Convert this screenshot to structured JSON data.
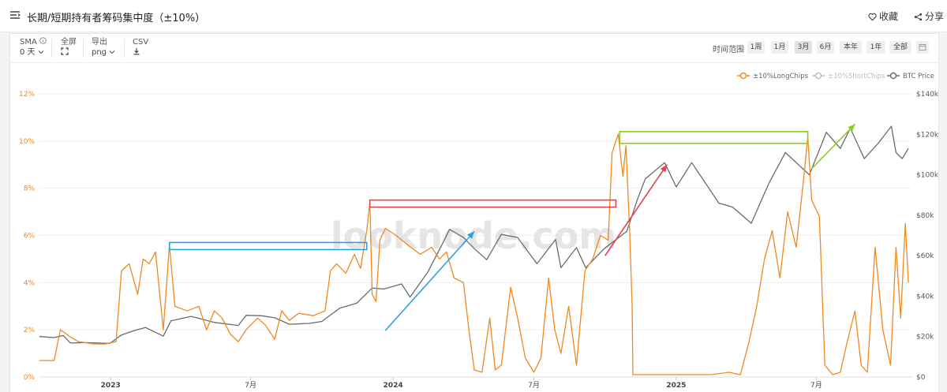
{
  "header": {
    "title": "长期/短期持有者筹码集中度（±10%）",
    "favorite_label": "收藏",
    "share_label": "分享"
  },
  "toolbar": {
    "sma": {
      "label": "SMA",
      "value": "0 天"
    },
    "fullscreen": {
      "label": "全屏"
    },
    "export": {
      "label": "导出",
      "value": "png"
    },
    "csv": {
      "label": "CSV"
    },
    "range_label": "时间范围",
    "ranges": [
      "1周",
      "1月",
      "3月",
      "6月",
      "本年",
      "1年",
      "全部"
    ],
    "active_range": "3月"
  },
  "colors": {
    "long_chips": "#f0891e",
    "short_chips": "#bdbdbd",
    "btc_price": "#6b6b6b",
    "annot_blue": "#29a3e0",
    "annot_red": "#e0444f",
    "annot_green": "#8ccc1e"
  },
  "watermark": "looknode.com",
  "chart_data": {
    "type": "line",
    "x_ticks": [
      "2023",
      "7月",
      "2024",
      "7月",
      "2025",
      "7月"
    ],
    "left_axis": {
      "ticks": [
        "0%",
        "2%",
        "4%",
        "6%",
        "8%",
        "10%",
        "12%"
      ],
      "ylim": [
        0,
        12
      ]
    },
    "right_axis": {
      "ticks": [
        "$0",
        "$20k",
        "$40k",
        "$60k",
        "$80k",
        "$100k",
        "$120k",
        "$140k"
      ],
      "ylim": [
        0,
        140000
      ]
    },
    "legend": {
      "position": "top-right"
    },
    "series": [
      {
        "name": "±10%LongChips",
        "axis": "left",
        "unit": "%",
        "points": [
          [
            "2022-10-01",
            0.7
          ],
          [
            "2022-10-20",
            0.7
          ],
          [
            "2022-10-28",
            2.0
          ],
          [
            "2022-11-10",
            1.7
          ],
          [
            "2022-11-20",
            1.5
          ],
          [
            "2022-12-10",
            1.4
          ],
          [
            "2022-12-25",
            1.4
          ],
          [
            "2023-01-08",
            1.5
          ],
          [
            "2023-01-15",
            4.5
          ],
          [
            "2023-01-25",
            4.8
          ],
          [
            "2023-02-05",
            3.5
          ],
          [
            "2023-02-12",
            5.0
          ],
          [
            "2023-02-20",
            4.8
          ],
          [
            "2023-02-28",
            5.3
          ],
          [
            "2023-03-10",
            2.0
          ],
          [
            "2023-03-18",
            5.6
          ],
          [
            "2023-03-25",
            3.0
          ],
          [
            "2023-04-10",
            2.8
          ],
          [
            "2023-04-25",
            3.0
          ],
          [
            "2023-05-05",
            2.0
          ],
          [
            "2023-05-15",
            2.8
          ],
          [
            "2023-05-25",
            2.5
          ],
          [
            "2023-06-05",
            1.8
          ],
          [
            "2023-06-15",
            1.5
          ],
          [
            "2023-06-25",
            2.0
          ],
          [
            "2023-07-10",
            2.5
          ],
          [
            "2023-07-20",
            2.2
          ],
          [
            "2023-08-01",
            1.6
          ],
          [
            "2023-08-10",
            2.8
          ],
          [
            "2023-08-20",
            2.4
          ],
          [
            "2023-09-01",
            2.7
          ],
          [
            "2023-09-20",
            2.6
          ],
          [
            "2023-10-05",
            2.8
          ],
          [
            "2023-10-12",
            4.5
          ],
          [
            "2023-10-20",
            4.8
          ],
          [
            "2023-11-01",
            4.4
          ],
          [
            "2023-11-12",
            5.2
          ],
          [
            "2023-11-20",
            4.6
          ],
          [
            "2023-11-28",
            6.2
          ],
          [
            "2023-12-02",
            7.4
          ],
          [
            "2023-12-05",
            3.5
          ],
          [
            "2023-12-10",
            3.2
          ],
          [
            "2023-12-15",
            5.8
          ],
          [
            "2023-12-22",
            6.3
          ],
          [
            "2024-01-05",
            6.0
          ],
          [
            "2024-01-20",
            5.6
          ],
          [
            "2024-02-05",
            5.2
          ],
          [
            "2024-02-20",
            5.5
          ],
          [
            "2024-03-01",
            5.0
          ],
          [
            "2024-03-10",
            5.3
          ],
          [
            "2024-03-20",
            4.2
          ],
          [
            "2024-04-01",
            4.0
          ],
          [
            "2024-04-08",
            2.0
          ],
          [
            "2024-04-15",
            0.3
          ],
          [
            "2024-04-25",
            0.2
          ],
          [
            "2024-05-05",
            2.5
          ],
          [
            "2024-05-12",
            0.3
          ],
          [
            "2024-05-20",
            0.5
          ],
          [
            "2024-06-01",
            3.8
          ],
          [
            "2024-06-10",
            2.5
          ],
          [
            "2024-06-20",
            0.8
          ],
          [
            "2024-07-01",
            0.2
          ],
          [
            "2024-07-10",
            0.8
          ],
          [
            "2024-07-20",
            4.2
          ],
          [
            "2024-07-28",
            2.0
          ],
          [
            "2024-08-05",
            1.0
          ],
          [
            "2024-08-15",
            3.0
          ],
          [
            "2024-08-25",
            0.5
          ],
          [
            "2024-09-05",
            4.5
          ],
          [
            "2024-09-15",
            5.0
          ],
          [
            "2024-09-25",
            6.0
          ],
          [
            "2024-10-05",
            5.8
          ],
          [
            "2024-10-10",
            9.5
          ],
          [
            "2024-10-18",
            10.3
          ],
          [
            "2024-10-24",
            8.5
          ],
          [
            "2024-10-28",
            9.8
          ],
          [
            "2024-11-02",
            6.0
          ],
          [
            "2024-11-05",
            3.0
          ],
          [
            "2024-11-06",
            0.1
          ],
          [
            "2024-12-01",
            0.1
          ],
          [
            "2025-01-15",
            0.1
          ],
          [
            "2025-02-15",
            0.1
          ],
          [
            "2025-03-10",
            0.2
          ],
          [
            "2025-03-25",
            0.1
          ],
          [
            "2025-04-05",
            1.5
          ],
          [
            "2025-04-15",
            3.0
          ],
          [
            "2025-04-25",
            5.0
          ],
          [
            "2025-05-05",
            6.2
          ],
          [
            "2025-05-15",
            4.2
          ],
          [
            "2025-05-25",
            7.0
          ],
          [
            "2025-06-05",
            5.5
          ],
          [
            "2025-06-15",
            8.5
          ],
          [
            "2025-06-20",
            10.2
          ],
          [
            "2025-06-25",
            7.5
          ],
          [
            "2025-07-05",
            6.8
          ],
          [
            "2025-07-12",
            0.5
          ],
          [
            "2025-07-22",
            0.1
          ],
          [
            "2025-08-01",
            0.2
          ],
          [
            "2025-08-10",
            1.5
          ],
          [
            "2025-08-20",
            2.8
          ],
          [
            "2025-08-28",
            0.5
          ],
          [
            "2025-09-05",
            0.2
          ],
          [
            "2025-09-15",
            5.5
          ],
          [
            "2025-09-25",
            2.0
          ],
          [
            "2025-10-05",
            0.5
          ],
          [
            "2025-10-12",
            5.5
          ],
          [
            "2025-10-18",
            2.5
          ],
          [
            "2025-10-24",
            6.5
          ],
          [
            "2025-10-28",
            4.0
          ]
        ]
      },
      {
        "name": "±10%ShortChips",
        "axis": "left",
        "unit": "%",
        "hidden": true,
        "points": []
      },
      {
        "name": "BTC Price",
        "axis": "right",
        "unit": "$",
        "points": [
          [
            "2022-10-01",
            20000
          ],
          [
            "2022-10-20",
            19500
          ],
          [
            "2022-11-01",
            20500
          ],
          [
            "2022-11-10",
            16800
          ],
          [
            "2022-12-01",
            17000
          ],
          [
            "2022-12-31",
            16600
          ],
          [
            "2023-01-15",
            20800
          ],
          [
            "2023-02-01",
            23000
          ],
          [
            "2023-02-15",
            24500
          ],
          [
            "2023-03-10",
            20200
          ],
          [
            "2023-03-20",
            27800
          ],
          [
            "2023-04-15",
            30000
          ],
          [
            "2023-05-15",
            27000
          ],
          [
            "2023-06-15",
            25500
          ],
          [
            "2023-06-25",
            30500
          ],
          [
            "2023-07-15",
            30300
          ],
          [
            "2023-08-01",
            29300
          ],
          [
            "2023-08-20",
            26100
          ],
          [
            "2023-09-15",
            26500
          ],
          [
            "2023-10-01",
            27500
          ],
          [
            "2023-10-24",
            34000
          ],
          [
            "2023-11-15",
            36500
          ],
          [
            "2023-12-05",
            44000
          ],
          [
            "2023-12-20",
            43500
          ],
          [
            "2024-01-12",
            46000
          ],
          [
            "2024-01-23",
            39500
          ],
          [
            "2024-02-15",
            52000
          ],
          [
            "2024-03-05",
            66000
          ],
          [
            "2024-03-14",
            73000
          ],
          [
            "2024-04-01",
            69000
          ],
          [
            "2024-04-15",
            63500
          ],
          [
            "2024-05-01",
            58000
          ],
          [
            "2024-05-20",
            70500
          ],
          [
            "2024-06-10",
            69000
          ],
          [
            "2024-07-05",
            56000
          ],
          [
            "2024-07-29",
            68000
          ],
          [
            "2024-08-05",
            54000
          ],
          [
            "2024-08-25",
            64000
          ],
          [
            "2024-09-06",
            54000
          ],
          [
            "2024-09-30",
            63500
          ],
          [
            "2024-10-29",
            72000
          ],
          [
            "2024-11-12",
            88000
          ],
          [
            "2024-11-22",
            98000
          ],
          [
            "2024-12-17",
            106000
          ],
          [
            "2025-01-01",
            94000
          ],
          [
            "2025-01-21",
            106000
          ],
          [
            "2025-02-25",
            86000
          ],
          [
            "2025-03-15",
            84000
          ],
          [
            "2025-04-08",
            76000
          ],
          [
            "2025-05-01",
            96000
          ],
          [
            "2025-05-22",
            111000
          ],
          [
            "2025-06-22",
            100000
          ],
          [
            "2025-07-14",
            121000
          ],
          [
            "2025-08-01",
            113000
          ],
          [
            "2025-08-14",
            123000
          ],
          [
            "2025-09-01",
            108000
          ],
          [
            "2025-09-20",
            116000
          ],
          [
            "2025-10-06",
            124000
          ],
          [
            "2025-10-12",
            111000
          ],
          [
            "2025-10-20",
            108000
          ],
          [
            "2025-10-28",
            113000
          ]
        ]
      }
    ],
    "annotations": [
      {
        "type": "range-box",
        "color": "blue",
        "x": [
          "2023-03-18",
          "2023-11-28"
        ],
        "y": [
          5.4,
          5.7
        ]
      },
      {
        "type": "range-box",
        "color": "red",
        "x": [
          "2023-12-02",
          "2024-10-15"
        ],
        "y": [
          7.2,
          7.5
        ]
      },
      {
        "type": "range-box",
        "color": "green",
        "x": [
          "2024-10-20",
          "2025-06-20"
        ],
        "y": [
          9.9,
          10.4
        ]
      },
      {
        "type": "arrow",
        "color": "blue",
        "from": [
          "2023-12-22",
          23000
        ],
        "to": [
          "2024-04-15",
          72000
        ]
      },
      {
        "type": "arrow",
        "color": "red",
        "from": [
          "2024-10-01",
          60000
        ],
        "to": [
          "2024-12-20",
          105000
        ]
      },
      {
        "type": "arrow",
        "color": "green",
        "from": [
          "2025-06-25",
          103000
        ],
        "to": [
          "2025-08-20",
          125000
        ]
      }
    ]
  }
}
